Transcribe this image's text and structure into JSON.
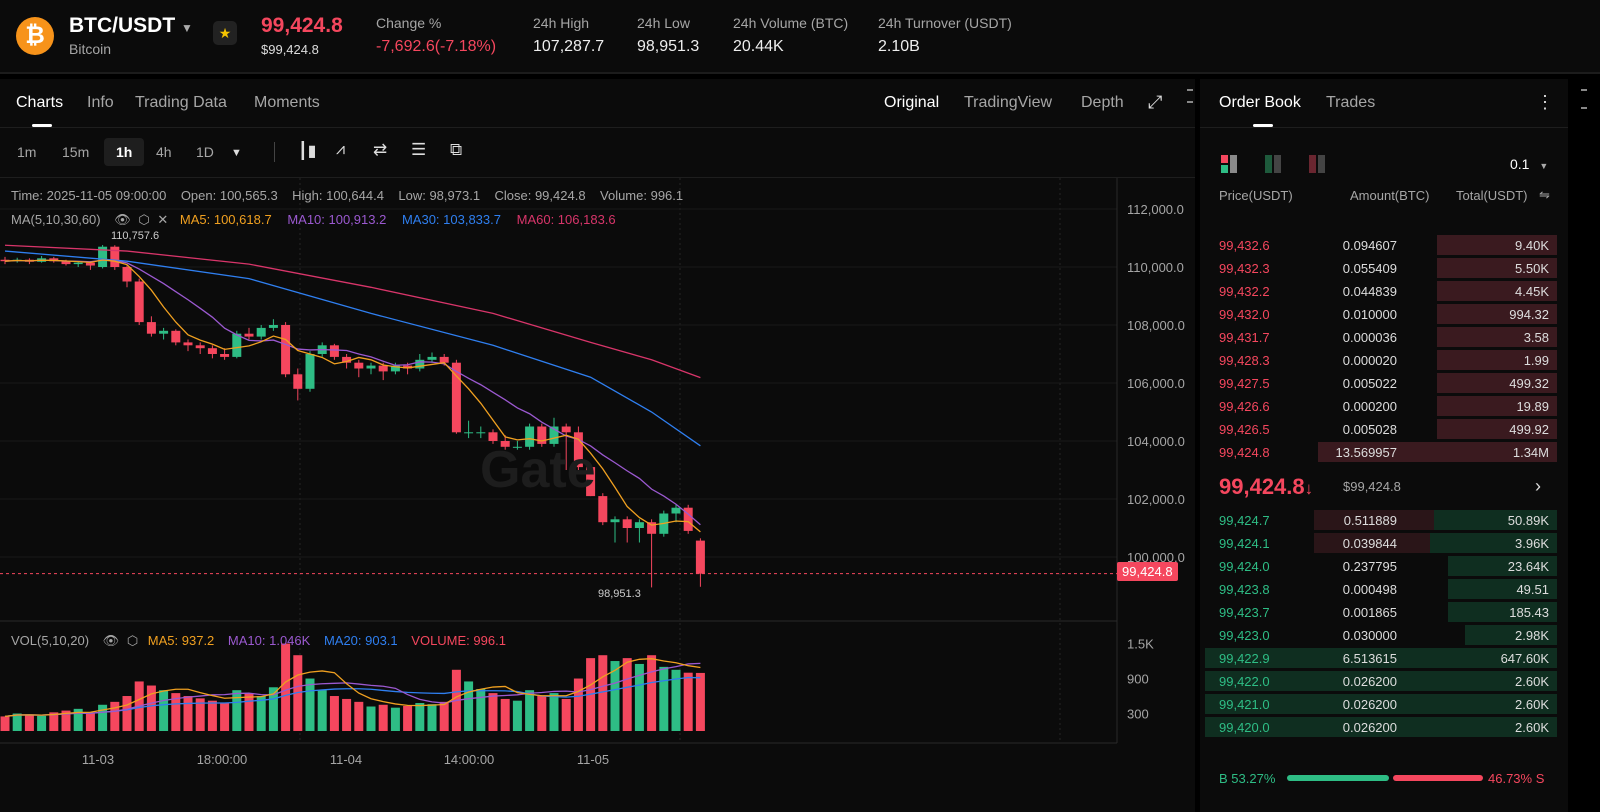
{
  "header": {
    "pair": "BTC/USDT",
    "name": "Bitcoin",
    "last_price": "99,424.8",
    "last_price_usd": "$99,424.8",
    "stats": [
      {
        "label": "Change %",
        "value": "-7,692.6(-7.18%)",
        "color": "red"
      },
      {
        "label": "24h High",
        "value": "107,287.7"
      },
      {
        "label": "24h Low",
        "value": "98,951.3"
      },
      {
        "label": "24h Volume (BTC)",
        "value": "20.44K"
      },
      {
        "label": "24h Turnover (USDT)",
        "value": "2.10B"
      }
    ]
  },
  "chart_tabs": [
    "Charts",
    "Info",
    "Trading Data",
    "Moments"
  ],
  "view_tabs": [
    "Original",
    "TradingView",
    "Depth"
  ],
  "timeframes": [
    "1m",
    "15m",
    "1h",
    "4h",
    "1D"
  ],
  "active_timeframe": "1h",
  "ohlc_legend": "Time: 2025-11-05 09:00:00    Open: 100,565.3    High: 100,644.4    Low: 98,973.1    Close: 99,424.8    Volume: 996.1",
  "ma_legend": {
    "label": "MA(5,10,30,60)",
    "ma5": "MA5: 100,618.7",
    "ma10": "MA10: 100,913.2",
    "ma30": "MA30: 103,833.7",
    "ma60": "MA60: 106,183.6"
  },
  "vol_legend": {
    "label": "VOL(5,10,20)",
    "ma5": "MA5: 937.2",
    "ma10": "MA10: 1.046K",
    "ma20": "MA20: 903.1",
    "volume": "VOLUME: 996.1"
  },
  "price_axis": [
    "112,000.0",
    "110,000.0",
    "108,000.0",
    "106,000.0",
    "104,000.0",
    "102,000.0",
    "100,000.0"
  ],
  "vol_axis": [
    "1.5K",
    "900",
    "300"
  ],
  "time_axis": [
    "0",
    "11-03",
    "18:00:00",
    "11-04",
    "14:00:00",
    "11-05"
  ],
  "high_marker": "110,757.6",
  "low_marker": "98,951.3",
  "current_tag": "99,424.8",
  "watermark": "Gate",
  "colors": {
    "up": "#2ebd85",
    "down": "#f5475e",
    "ma5": "#f0a020",
    "ma10": "#9b59d0",
    "ma30": "#2f7ff0",
    "ma60": "#d8356a"
  },
  "chart_data": {
    "type": "candlestick",
    "price_range": [
      98500,
      112500
    ],
    "candles": [
      [
        110250,
        110350,
        110100,
        110200
      ],
      [
        110200,
        110320,
        110150,
        110250
      ],
      [
        110250,
        110300,
        110100,
        110180
      ],
      [
        110180,
        110380,
        110150,
        110300
      ],
      [
        110300,
        110350,
        110150,
        110200
      ],
      [
        110200,
        110250,
        110050,
        110100
      ],
      [
        110100,
        110200,
        110000,
        110150
      ],
      [
        110150,
        110200,
        109900,
        110050
      ],
      [
        110000,
        110757.6,
        109950,
        110700
      ],
      [
        110700,
        110750,
        109900,
        110000
      ],
      [
        110000,
        110050,
        109300,
        109500
      ],
      [
        109500,
        109600,
        108000,
        108100
      ],
      [
        108100,
        108300,
        107600,
        107700
      ],
      [
        107700,
        107900,
        107500,
        107800
      ],
      [
        107800,
        107850,
        107300,
        107400
      ],
      [
        107400,
        107500,
        107100,
        107300
      ],
      [
        107300,
        107400,
        107000,
        107200
      ],
      [
        107200,
        107300,
        106850,
        107000
      ],
      [
        107000,
        107200,
        106800,
        106900
      ],
      [
        106900,
        107800,
        106850,
        107700
      ],
      [
        107700,
        107900,
        107500,
        107600
      ],
      [
        107600,
        108000,
        107500,
        107900
      ],
      [
        107900,
        108200,
        107800,
        108000
      ],
      [
        108000,
        108100,
        106200,
        106300
      ],
      [
        106300,
        106500,
        105400,
        105800
      ],
      [
        105800,
        107100,
        105700,
        107000
      ],
      [
        107000,
        107400,
        106900,
        107300
      ],
      [
        107300,
        107350,
        106800,
        106900
      ],
      [
        106900,
        107000,
        106500,
        106700
      ],
      [
        106700,
        106800,
        106200,
        106500
      ],
      [
        106500,
        106700,
        106300,
        106600
      ],
      [
        106600,
        106700,
        106100,
        106400
      ],
      [
        106400,
        106700,
        106300,
        106600
      ],
      [
        106600,
        106700,
        106300,
        106500
      ],
      [
        106500,
        107000,
        106400,
        106800
      ],
      [
        106800,
        107050,
        106700,
        106900
      ],
      [
        106900,
        107000,
        106600,
        106700
      ],
      [
        106700,
        106800,
        104250,
        104300
      ],
      [
        104300,
        104700,
        104100,
        104300
      ],
      [
        104300,
        104500,
        104100,
        104300
      ],
      [
        104300,
        104400,
        103900,
        104000
      ],
      [
        104000,
        104200,
        103700,
        103800
      ],
      [
        103800,
        104000,
        103700,
        103800
      ],
      [
        103800,
        104600,
        103700,
        104500
      ],
      [
        104500,
        104600,
        103800,
        103900
      ],
      [
        103900,
        104800,
        103800,
        104500
      ],
      [
        104500,
        104600,
        103000,
        104300
      ],
      [
        104300,
        104500,
        103000,
        103100
      ],
      [
        103100,
        103200,
        102100,
        102100
      ],
      [
        102100,
        102200,
        101100,
        101200
      ],
      [
        101200,
        101400,
        100500,
        101300
      ],
      [
        101300,
        101400,
        100500,
        101000
      ],
      [
        101000,
        101300,
        100500,
        101200
      ],
      [
        101200,
        101300,
        98951.3,
        100800
      ],
      [
        100800,
        101600,
        100700,
        101500
      ],
      [
        101500,
        101800,
        101200,
        101700
      ],
      [
        101700,
        101800,
        100800,
        100900
      ],
      [
        100565.3,
        100644.4,
        98973.1,
        99424.8
      ]
    ],
    "volumes": [
      250,
      300,
      280,
      260,
      320,
      350,
      380,
      300,
      450,
      500,
      600,
      850,
      780,
      700,
      650,
      600,
      560,
      520,
      480,
      700,
      650,
      600,
      750,
      1500,
      1300,
      900,
      700,
      600,
      550,
      500,
      420,
      450,
      400,
      430,
      480,
      460,
      500,
      1050,
      850,
      720,
      650,
      550,
      520,
      700,
      600,
      650,
      550,
      900,
      1250,
      1300,
      1200,
      1250,
      1150,
      1300,
      1100,
      1050,
      1000,
      996.1
    ],
    "ma30": [
      [
        0,
        110550
      ],
      [
        10,
        110200
      ],
      [
        20,
        109600
      ],
      [
        30,
        108400
      ],
      [
        40,
        107300
      ],
      [
        48,
        106200
      ],
      [
        53,
        105000
      ],
      [
        57,
        103834
      ]
    ],
    "ma60": [
      [
        0,
        110750
      ],
      [
        10,
        110550
      ],
      [
        20,
        110100
      ],
      [
        30,
        109300
      ],
      [
        40,
        108400
      ],
      [
        48,
        107400
      ],
      [
        53,
        106800
      ],
      [
        57,
        106184
      ]
    ]
  },
  "order_book": {
    "tabs": [
      "Order Book",
      "Trades"
    ],
    "precision": "0.1",
    "headers": [
      "Price(USDT)",
      "Amount(BTC)",
      "Total(USDT)"
    ],
    "asks": [
      [
        "99,432.6",
        "0.094607",
        "9.40K",
        0.34
      ],
      [
        "99,432.3",
        "0.055409",
        "5.50K",
        0.34
      ],
      [
        "99,432.2",
        "0.044839",
        "4.45K",
        0.34
      ],
      [
        "99,432.0",
        "0.010000",
        "994.32",
        0.34
      ],
      [
        "99,431.7",
        "0.000036",
        "3.58",
        0.34
      ],
      [
        "99,428.3",
        "0.000020",
        "1.99",
        0.34
      ],
      [
        "99,427.5",
        "0.005022",
        "499.32",
        0.34
      ],
      [
        "99,426.6",
        "0.000200",
        "19.89",
        0.34
      ],
      [
        "99,426.5",
        "0.005028",
        "499.92",
        0.34
      ],
      [
        "99,424.8",
        "13.569957",
        "1.34M",
        0.68
      ]
    ],
    "mid_price": "99,424.8",
    "mid_arrow": "↓",
    "mid_usd": "$99,424.8",
    "bids": [
      [
        "99,424.7",
        "0.511889",
        "50.89K",
        0.35,
        0.69
      ],
      [
        "99,424.1",
        "0.039844",
        "3.96K",
        0.36,
        0.69
      ],
      [
        "99,424.0",
        "0.237795",
        "23.64K",
        0.31,
        0
      ],
      [
        "99,423.8",
        "0.000498",
        "49.51",
        0.31,
        0
      ],
      [
        "99,423.7",
        "0.001865",
        "185.43",
        0.31,
        0
      ],
      [
        "99,423.0",
        "0.030000",
        "2.98K",
        0.26,
        0
      ],
      [
        "99,422.9",
        "6.513615",
        "647.60K",
        1.0,
        0
      ],
      [
        "99,422.0",
        "0.026200",
        "2.60K",
        1.0,
        0
      ],
      [
        "99,421.0",
        "0.026200",
        "2.60K",
        1.0,
        0
      ],
      [
        "99,420.0",
        "0.026200",
        "2.60K",
        1.0,
        0
      ]
    ],
    "buy_ratio": "B 53.27%",
    "sell_ratio": "46.73% S",
    "buy_fraction": 0.5327
  }
}
